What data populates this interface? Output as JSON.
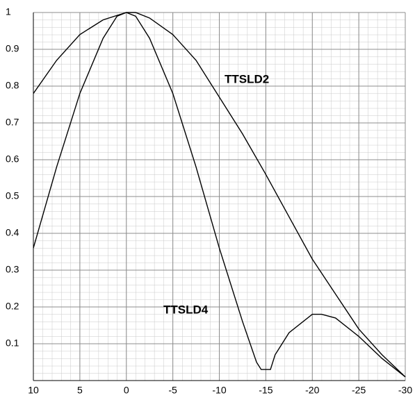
{
  "chart_data": {
    "type": "line",
    "annotations": [
      "TTSLD2",
      "TTSLD4"
    ],
    "series": [
      {
        "name": "TTSLD2",
        "color": "#000000",
        "x": [
          10,
          7.5,
          5,
          2.5,
          0,
          -1,
          -2.5,
          -5,
          -7.5,
          -10,
          -12.5,
          -15,
          -17.5,
          -20,
          -22.5,
          -25,
          -27.5,
          -30
        ],
        "values": [
          0.78,
          0.87,
          0.94,
          0.98,
          1.0,
          1.0,
          0.985,
          0.94,
          0.87,
          0.77,
          0.67,
          0.56,
          0.445,
          0.33,
          0.235,
          0.14,
          0.07,
          0.01
        ]
      },
      {
        "name": "TTSLD4",
        "color": "#000000",
        "x": [
          10,
          7.5,
          5,
          2.5,
          1,
          0,
          -1,
          -2.5,
          -5,
          -7.5,
          -10,
          -12.5,
          -14,
          -14.5,
          -15.5,
          -16,
          -17.5,
          -20,
          -21,
          -22.5,
          -25,
          -27.5,
          -30
        ],
        "values": [
          0.36,
          0.58,
          0.78,
          0.93,
          0.99,
          1.0,
          0.99,
          0.93,
          0.78,
          0.58,
          0.36,
          0.16,
          0.05,
          0.03,
          0.03,
          0.07,
          0.13,
          0.18,
          0.18,
          0.17,
          0.12,
          0.06,
          0.01
        ]
      }
    ],
    "xlim": [
      10,
      -30
    ],
    "xticks": [
      10,
      5,
      0,
      -5,
      -10,
      -15,
      -20,
      -25,
      -30
    ],
    "ylim": [
      0,
      1
    ],
    "yticks": [
      0.1,
      0.2,
      0.3,
      0.4,
      0.5,
      0.6,
      0.7,
      0.8,
      0.9,
      1
    ],
    "grid": true
  }
}
